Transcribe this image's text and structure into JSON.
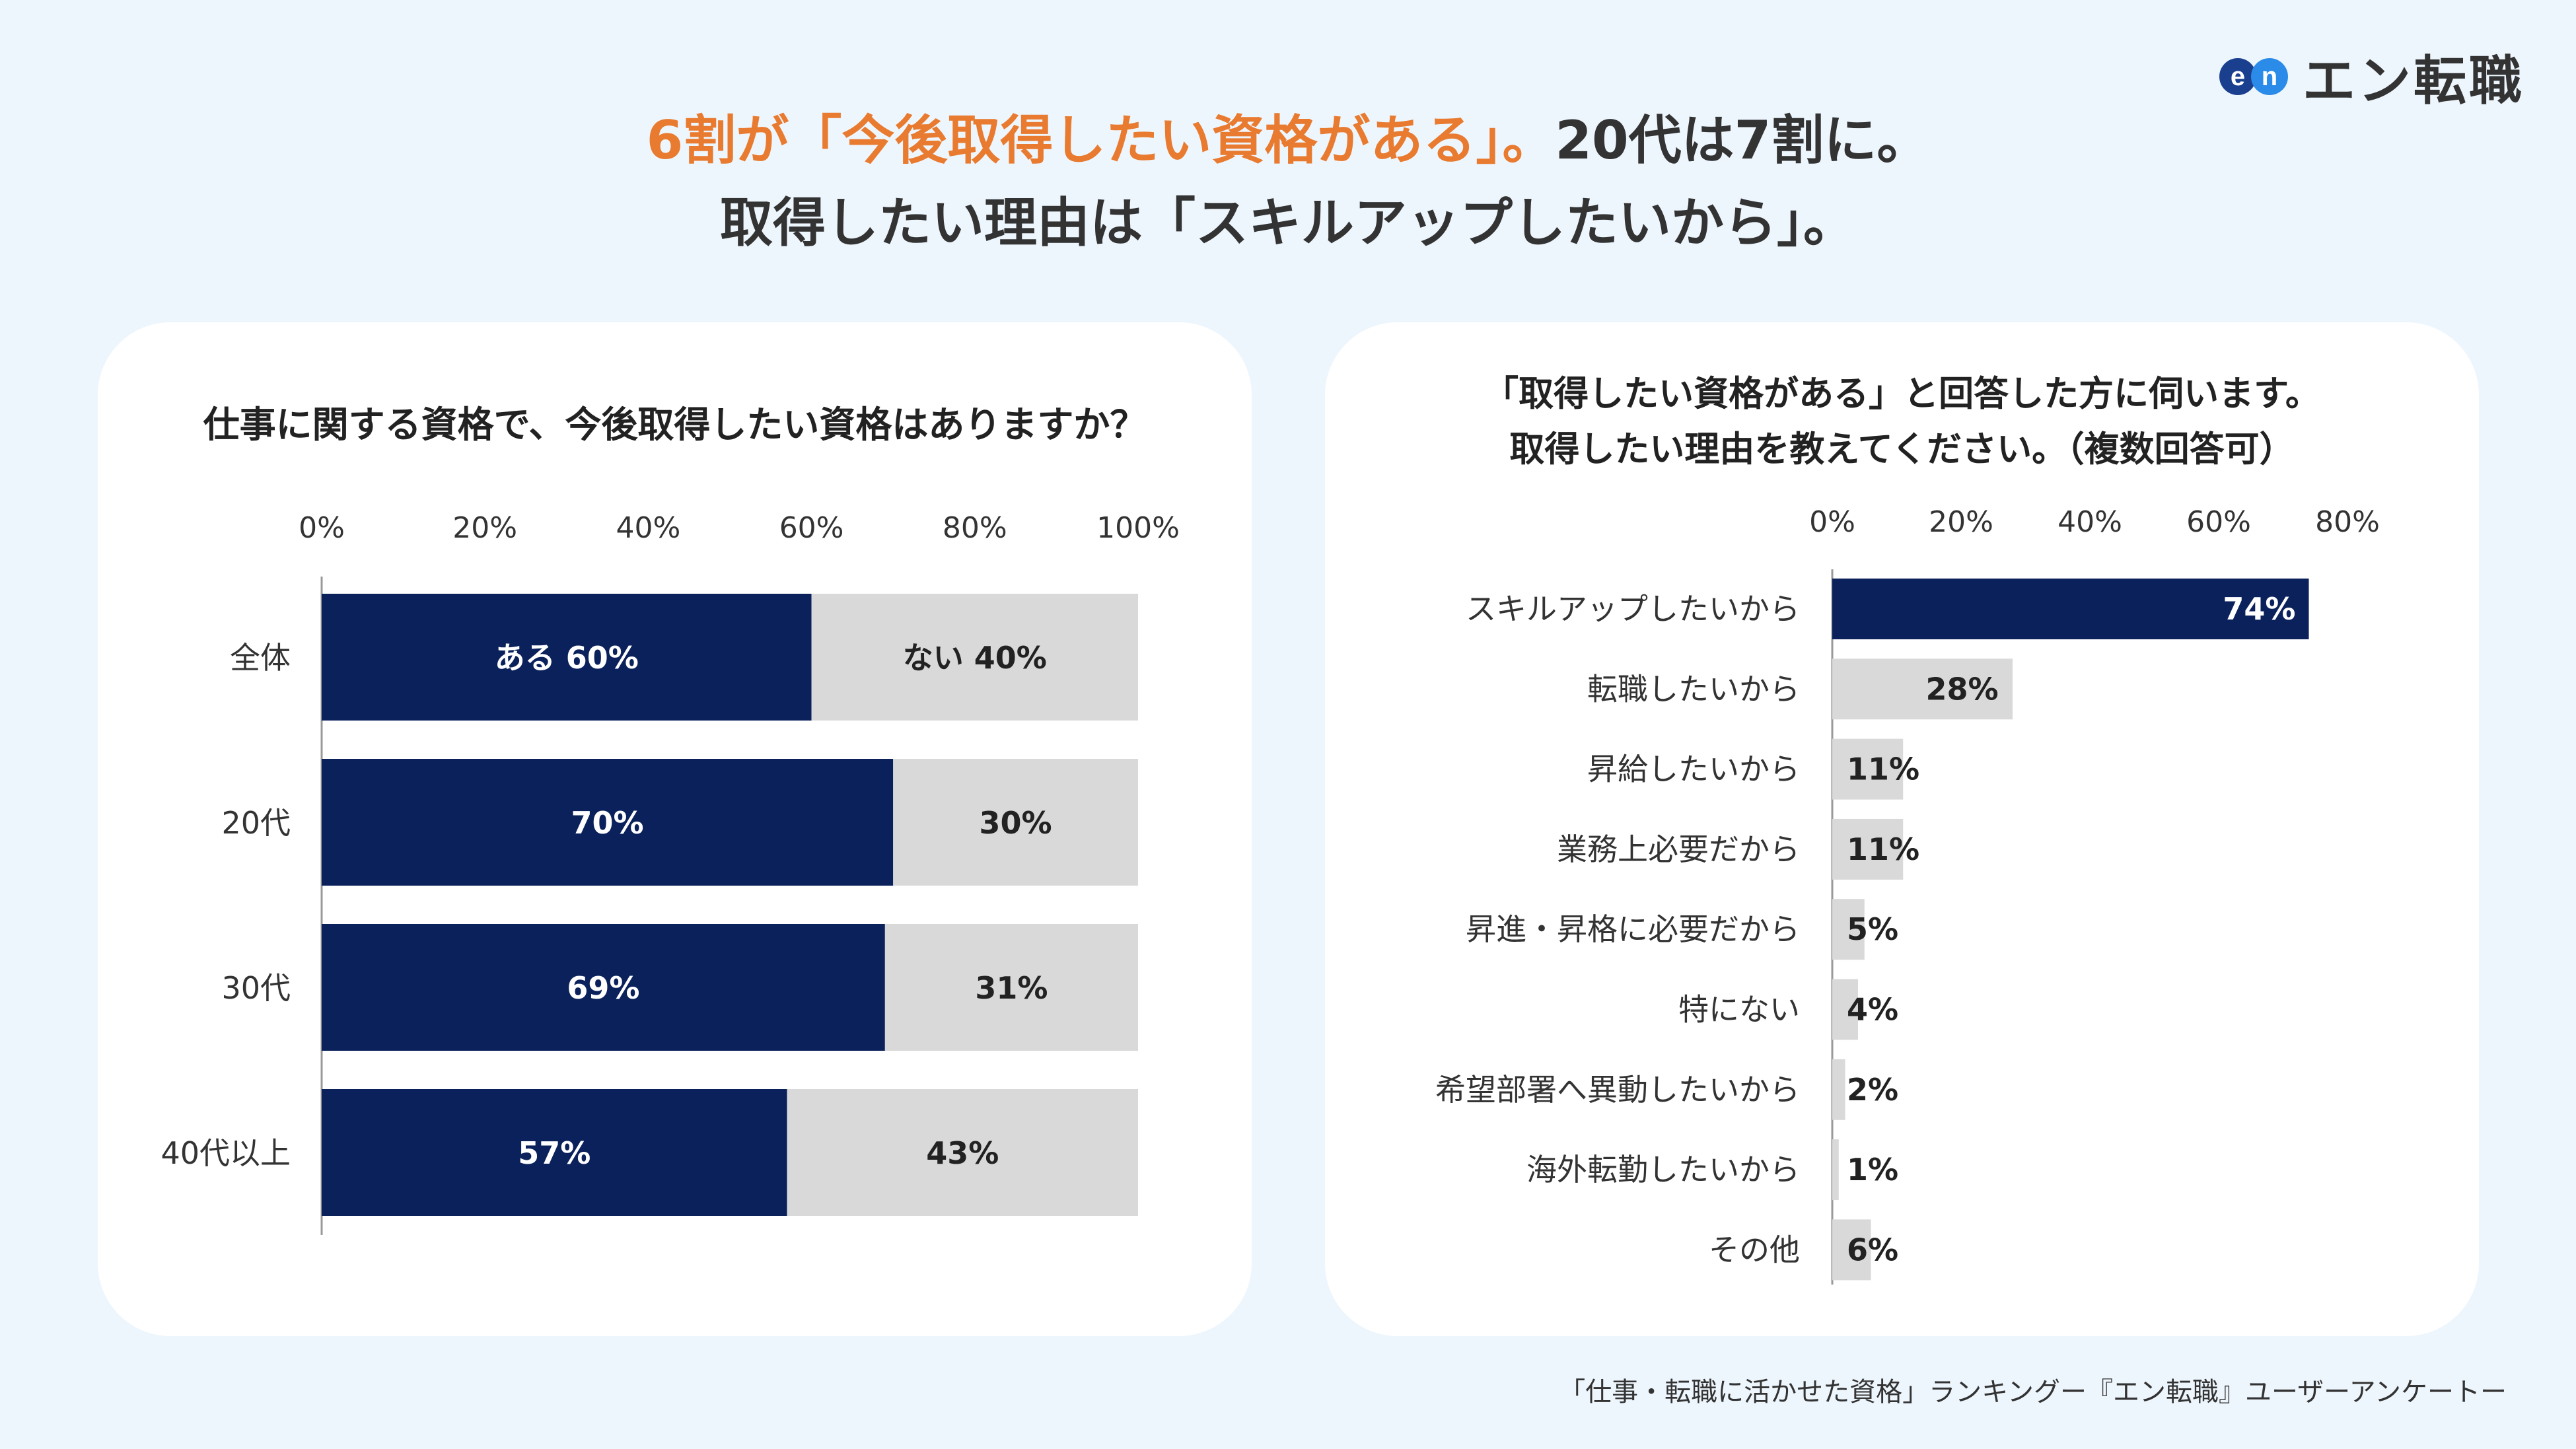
{
  "logo": {
    "mark_e": "e",
    "mark_n": "n",
    "text": "エン転職"
  },
  "headline": {
    "line1_accent": "6割が「今後取得したい資格がある」。",
    "line1_rest": "20代は7割に。",
    "line2": "取得したい理由は「スキルアップしたいから」。"
  },
  "left_question": "仕事に関する資格で、今後取得したい資格はありますか？",
  "right_question": {
    "line1": "「取得したい資格がある」と回答した方に伺います。",
    "line2": "取得したい理由を教えてください。（複数回答可）"
  },
  "footer": "「仕事・転職に活かせた資格」ランキングー『エン転職』ユーザーアンケートー",
  "colors": {
    "navy": "#0b215c",
    "gray": "#d9d9d9",
    "accent": "#e87b30"
  },
  "chart_data": [
    {
      "type": "bar",
      "orientation": "horizontal",
      "stacked": true,
      "title": "仕事に関する資格で、今後取得したい資格はありますか？",
      "xlim": [
        0,
        100
      ],
      "xticks": [
        "0%",
        "20%",
        "40%",
        "60%",
        "80%",
        "100%"
      ],
      "categories": [
        "全体",
        "20代",
        "30代",
        "40代以上"
      ],
      "series": [
        {
          "name": "ある",
          "values": [
            60,
            70,
            69,
            57
          ],
          "labels": [
            "ある 60%",
            "70%",
            "69%",
            "57%"
          ]
        },
        {
          "name": "ない",
          "values": [
            40,
            30,
            31,
            43
          ],
          "labels": [
            "ない 40%",
            "30%",
            "31%",
            "43%"
          ]
        }
      ]
    },
    {
      "type": "bar",
      "orientation": "horizontal",
      "title": "「取得したい資格がある」と回答した方に伺います。取得したい理由を教えてください。（複数回答可）",
      "xlim": [
        0,
        80
      ],
      "xticks": [
        "0%",
        "20%",
        "40%",
        "60%",
        "80%"
      ],
      "categories": [
        "スキルアップしたいから",
        "転職したいから",
        "昇給したいから",
        "業務上必要だから",
        "昇進・昇格に必要だから",
        "特にない",
        "希望部署へ異動したいから",
        "海外転勤したいから",
        "その他"
      ],
      "values": [
        74,
        28,
        11,
        11,
        5,
        4,
        2,
        1,
        6
      ],
      "labels": [
        "74%",
        "28%",
        "11%",
        "11%",
        "5%",
        "4%",
        "2%",
        "1%",
        "6%"
      ]
    }
  ]
}
